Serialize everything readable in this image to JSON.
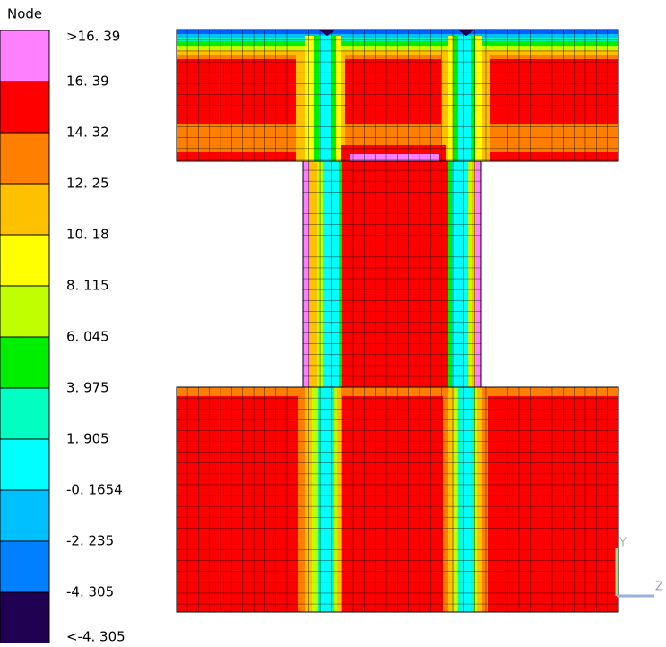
{
  "legend": {
    "title": "Node",
    "labels": [
      ">16. 39",
      "16. 39",
      "14. 32",
      "12. 25",
      "10. 18",
      "8. 115",
      "6. 045",
      "3. 975",
      "1. 905",
      "-0. 1654",
      "-2. 235",
      "-4. 305",
      "<-4. 305"
    ],
    "colors": [
      "#ff80ff",
      "#ff0000",
      "#ff8000",
      "#ffc000",
      "#ffff00",
      "#c0ff00",
      "#00ee00",
      "#00ffc0",
      "#00ffff",
      "#00c0ff",
      "#0080ff",
      "#200050"
    ]
  },
  "triad": {
    "y_label": "Y",
    "z_label": "Z"
  }
}
